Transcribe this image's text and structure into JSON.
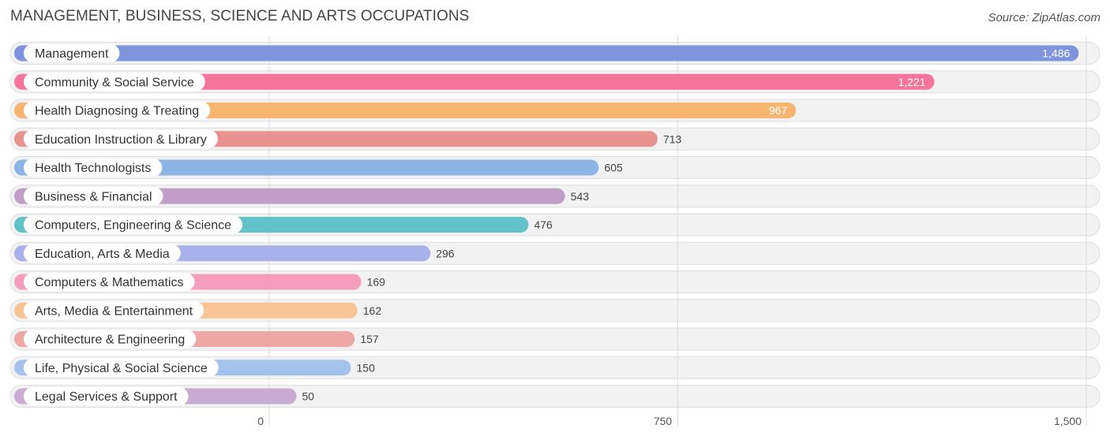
{
  "header": {
    "title": "MANAGEMENT, BUSINESS, SCIENCE AND ARTS OCCUPATIONS",
    "source": "Source: ZipAtlas.com"
  },
  "chart_data": {
    "type": "bar",
    "orientation": "horizontal",
    "title": "MANAGEMENT, BUSINESS, SCIENCE AND ARTS OCCUPATIONS",
    "xlim": [
      0,
      1500
    ],
    "ticks": [
      0,
      750,
      1500
    ],
    "tick_labels": [
      "0",
      "750",
      "1,500"
    ],
    "grid": true,
    "categories": [
      "Management",
      "Community & Social Service",
      "Health Diagnosing & Treating",
      "Education Instruction & Library",
      "Health Technologists",
      "Business & Financial",
      "Computers, Engineering & Science",
      "Education, Arts & Media",
      "Computers & Mathematics",
      "Arts, Media & Entertainment",
      "Architecture & Engineering",
      "Life, Physical & Social Science",
      "Legal Services & Support"
    ],
    "values": [
      1486,
      1221,
      967,
      713,
      605,
      543,
      476,
      296,
      169,
      162,
      157,
      150,
      50
    ],
    "value_labels": [
      "1,486",
      "1,221",
      "967",
      "713",
      "605",
      "543",
      "476",
      "296",
      "169",
      "162",
      "157",
      "150",
      "50"
    ],
    "colors": [
      "#7e95de",
      "#f5749c",
      "#f8b570",
      "#e9938f",
      "#8cb5e6",
      "#c19ec8",
      "#62c2ca",
      "#a9b1ea",
      "#f49dbc",
      "#f8c495",
      "#eda8a6",
      "#a3c3ec",
      "#c9abd3"
    ]
  }
}
